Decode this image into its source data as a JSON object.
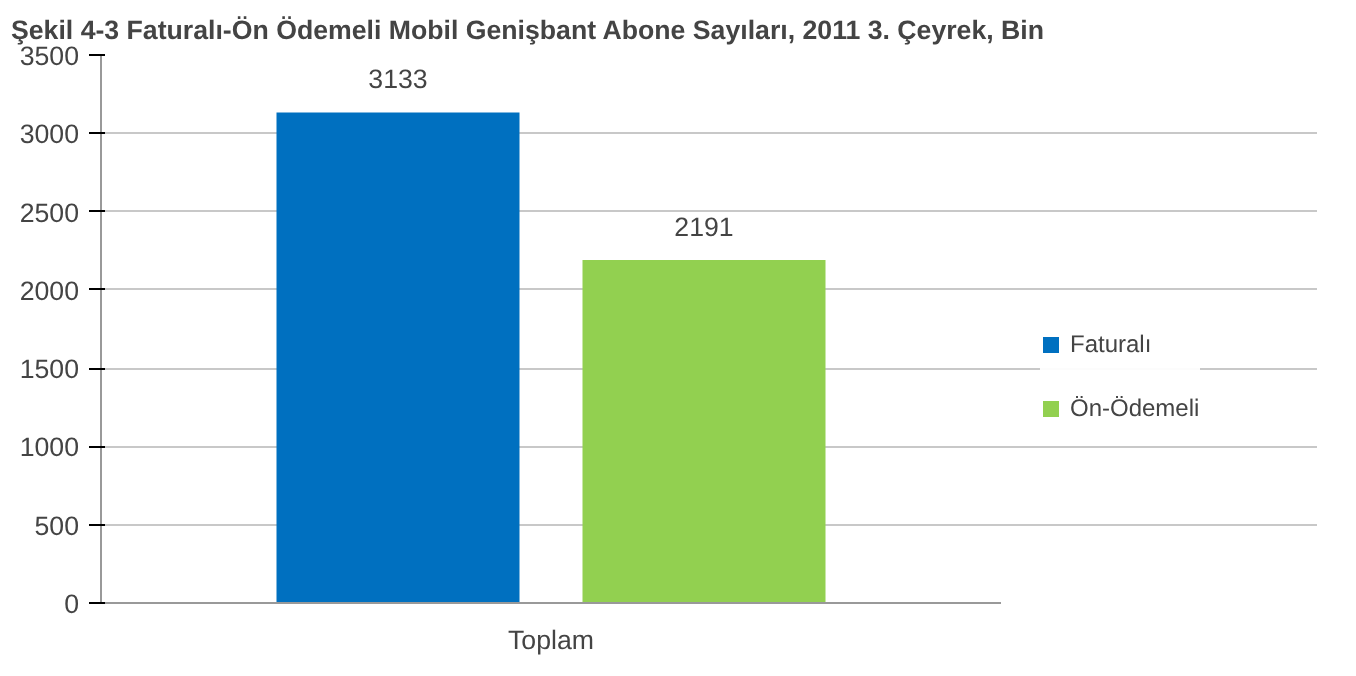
{
  "chart_data": {
    "type": "bar",
    "title": "Şekil 4-3 Faturalı-Ön Ödemeli Mobil Genişbant Abone Sayıları, 2011 3. Çeyrek, Bin",
    "categories": [
      "Toplam"
    ],
    "series": [
      {
        "name": "Faturalı",
        "color": "#0070c0",
        "values": [
          3133
        ]
      },
      {
        "name": "Ön-Ödemeli",
        "color": "#92d050",
        "values": [
          2191
        ]
      }
    ],
    "ylim": [
      0,
      3500
    ],
    "yticks": [
      0,
      500,
      1000,
      1500,
      2000,
      2500,
      3000,
      3500
    ],
    "grid": "y",
    "legend": "right",
    "data_labels": true
  }
}
